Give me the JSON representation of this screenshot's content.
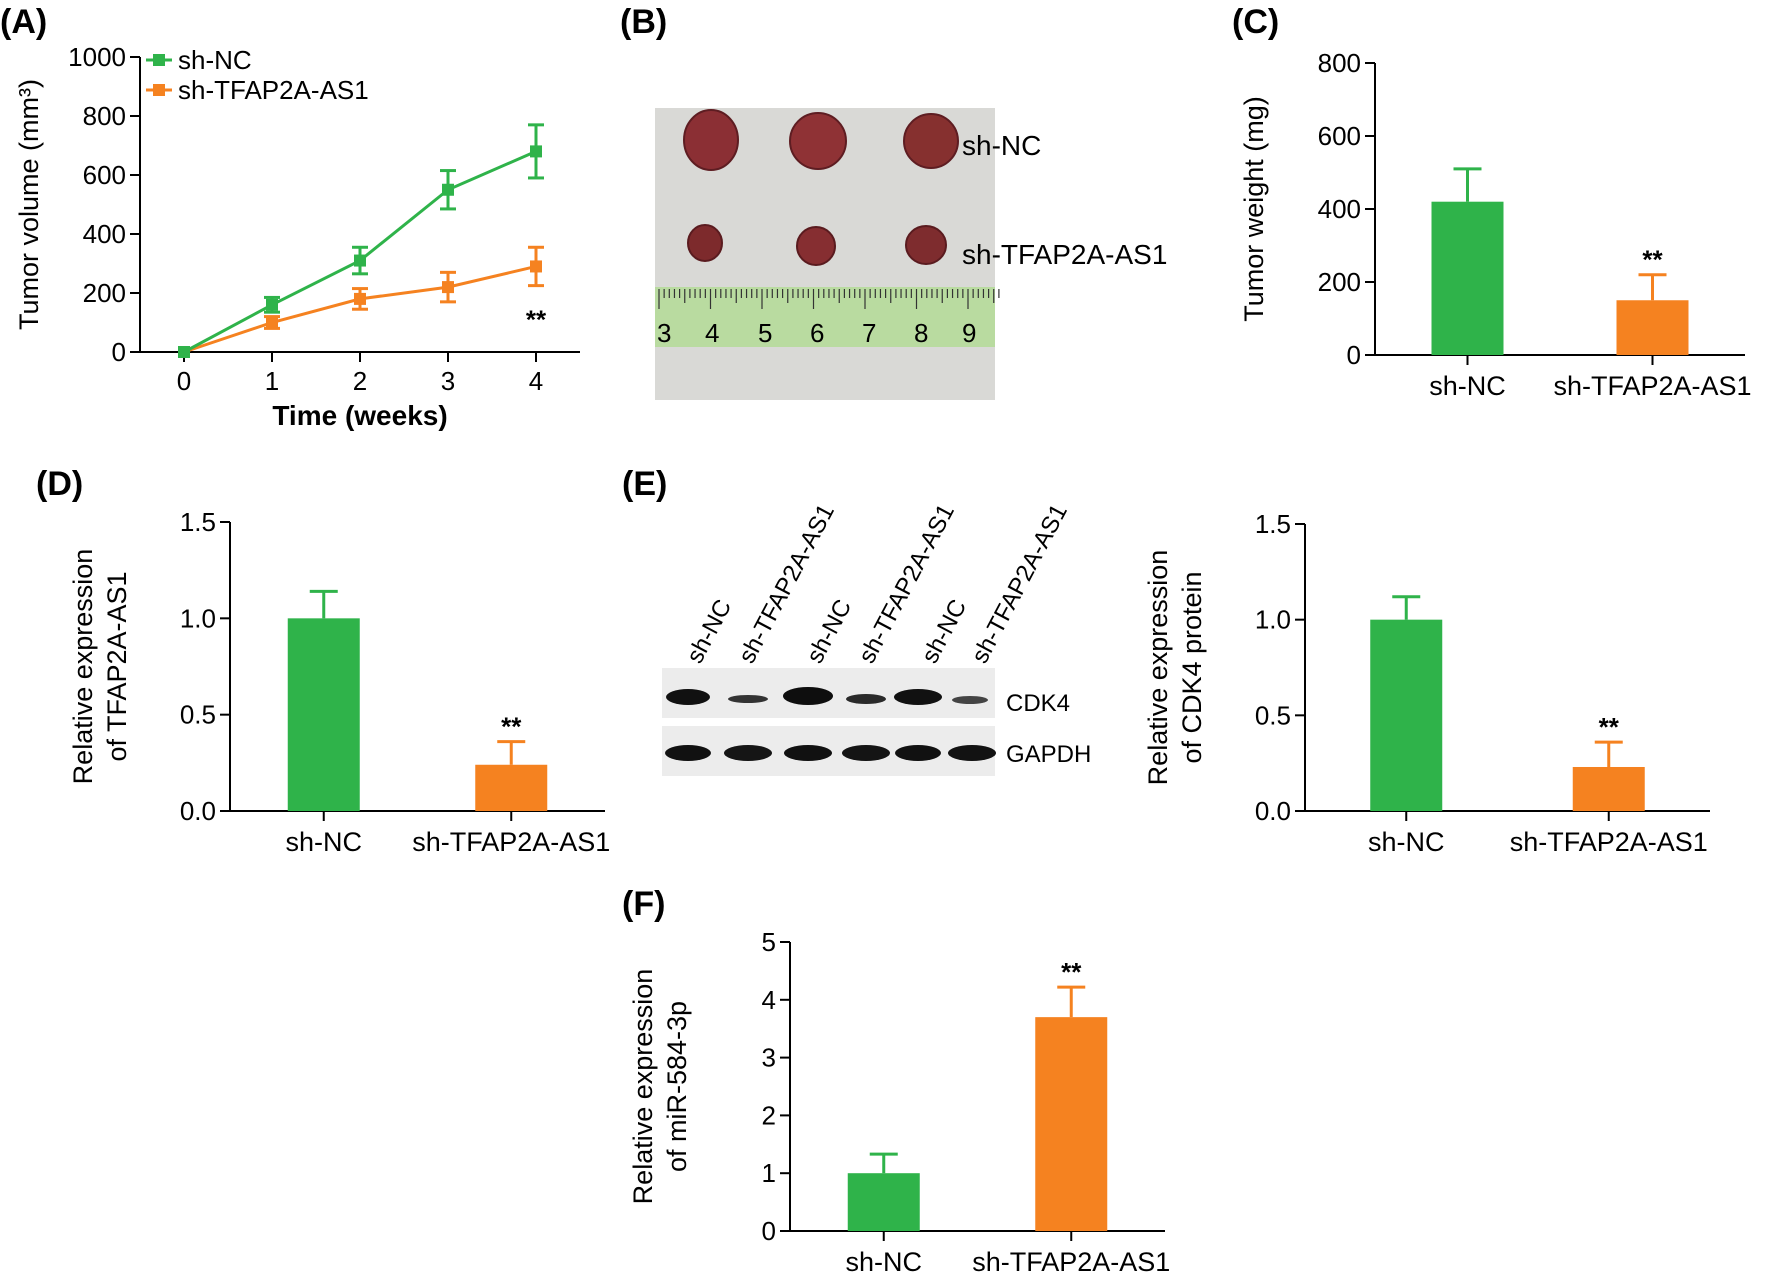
{
  "colors": {
    "green": "#2fb34a",
    "orange": "#f58220",
    "axis": "#000000"
  },
  "panels": {
    "A": {
      "letter": "(A)"
    },
    "B": {
      "letter": "(B)",
      "group_labels": [
        "sh-NC",
        "sh-TFAP2A-AS1"
      ],
      "ruler_numbers": [
        "3",
        "4",
        "5",
        "6",
        "7",
        "8",
        "9"
      ]
    },
    "C": {
      "letter": "(C)"
    },
    "D": {
      "letter": "(D)"
    },
    "E": {
      "letter": "(E)",
      "lane_labels": [
        "sh-NC",
        "sh-TFAP2A-AS1",
        "sh-NC",
        "sh-TFAP2A-AS1",
        "sh-NC",
        "sh-TFAP2A-AS1"
      ],
      "band_labels": [
        "CDK4",
        "GAPDH"
      ]
    },
    "F": {
      "letter": "(F)"
    }
  },
  "chart_data": [
    {
      "id": "A",
      "type": "line",
      "xlabel": "Time (weeks)",
      "ylabel": "Tumor volume (mm³)",
      "x": [
        0,
        1,
        2,
        3,
        4
      ],
      "xticks": [
        "0",
        "1",
        "2",
        "3",
        "4"
      ],
      "xlim": [
        -0.5,
        4.5
      ],
      "ylim": [
        0,
        1000
      ],
      "yticks": [
        "0",
        "200",
        "400",
        "600",
        "800",
        "1000"
      ],
      "legend_position": "top-left",
      "series": [
        {
          "name": "sh-NC",
          "color": "#2fb34a",
          "values": [
            0,
            160,
            310,
            550,
            680
          ],
          "errors": [
            0,
            25,
            45,
            65,
            90
          ]
        },
        {
          "name": "sh-TFAP2A-AS1",
          "color": "#f58220",
          "values": [
            0,
            100,
            180,
            220,
            290
          ],
          "errors": [
            0,
            20,
            35,
            50,
            65
          ]
        }
      ],
      "annotations": [
        {
          "x": 4,
          "text": "**"
        }
      ]
    },
    {
      "id": "C",
      "type": "bar",
      "ylabel": "Tumor weight (mg)",
      "categories": [
        "sh-NC",
        "sh-TFAP2A-AS1"
      ],
      "values": [
        420,
        150
      ],
      "errors": [
        90,
        70
      ],
      "colors": [
        "#2fb34a",
        "#f58220"
      ],
      "ylim": [
        0,
        800
      ],
      "yticks": [
        "0",
        "200",
        "400",
        "600",
        "800"
      ],
      "significance": [
        "",
        "**"
      ]
    },
    {
      "id": "D",
      "type": "bar",
      "ylabel": "Relative expression of TFAP2A-AS1",
      "categories": [
        "sh-NC",
        "sh-TFAP2A-AS1"
      ],
      "values": [
        1.0,
        0.24
      ],
      "errors": [
        0.14,
        0.12
      ],
      "colors": [
        "#2fb34a",
        "#f58220"
      ],
      "ylim": [
        0,
        1.5
      ],
      "yticks": [
        "0.0",
        "0.5",
        "1.0",
        "1.5"
      ],
      "significance": [
        "",
        "**"
      ]
    },
    {
      "id": "E",
      "type": "bar",
      "ylabel": "Relative expression of CDK4 protein",
      "categories": [
        "sh-NC",
        "sh-TFAP2A-AS1"
      ],
      "values": [
        1.0,
        0.23
      ],
      "errors": [
        0.12,
        0.13
      ],
      "colors": [
        "#2fb34a",
        "#f58220"
      ],
      "ylim": [
        0,
        1.5
      ],
      "yticks": [
        "0.0",
        "0.5",
        "1.0",
        "1.5"
      ],
      "significance": [
        "",
        "**"
      ]
    },
    {
      "id": "F",
      "type": "bar",
      "ylabel": "Relative expression of miR-584-3p",
      "categories": [
        "sh-NC",
        "sh-TFAP2A-AS1"
      ],
      "values": [
        1.0,
        3.7
      ],
      "errors": [
        0.33,
        0.52
      ],
      "colors": [
        "#2fb34a",
        "#f58220"
      ],
      "ylim": [
        0,
        5
      ],
      "yticks": [
        "0",
        "1",
        "2",
        "3",
        "4",
        "5"
      ],
      "significance": [
        "",
        "**"
      ]
    }
  ]
}
